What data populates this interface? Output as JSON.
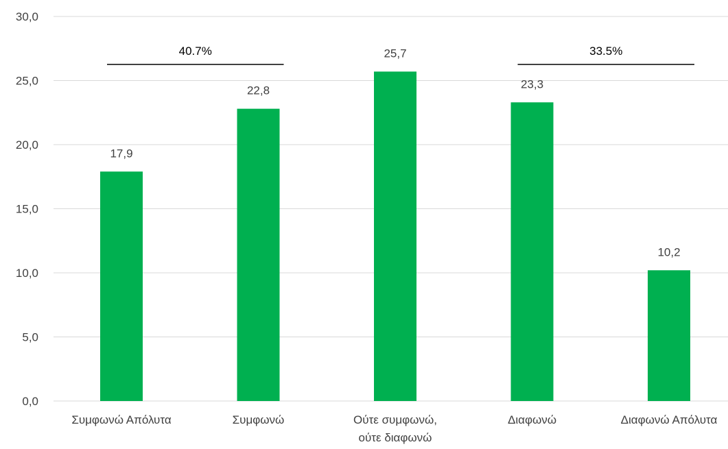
{
  "chart_data": {
    "type": "bar",
    "categories": [
      [
        "Συμφωνώ Απόλυτα"
      ],
      [
        "Συμφωνώ"
      ],
      [
        "Ούτε συμφωνώ,",
        "ούτε διαφωνώ"
      ],
      [
        "Διαφωνώ"
      ],
      [
        "Διαφωνώ Απόλυτα"
      ]
    ],
    "values": [
      17.9,
      22.8,
      25.7,
      23.3,
      10.2
    ],
    "data_labels": [
      "17,9",
      "22,8",
      "25,7",
      "23,3",
      "10,2"
    ],
    "ylim": [
      0,
      30
    ],
    "yticks": [
      0,
      5,
      10,
      15,
      20,
      25,
      30
    ],
    "ytick_labels": [
      "0,0",
      "5,0",
      "10,0",
      "15,0",
      "20,0",
      "25,0",
      "30,0"
    ],
    "grid": true,
    "bar_color": "#00b050",
    "group_annotations": [
      {
        "label": "40.7%",
        "from_category": 0,
        "to_category": 1
      },
      {
        "label": "33.5%",
        "from_category": 3,
        "to_category": 4
      }
    ]
  }
}
